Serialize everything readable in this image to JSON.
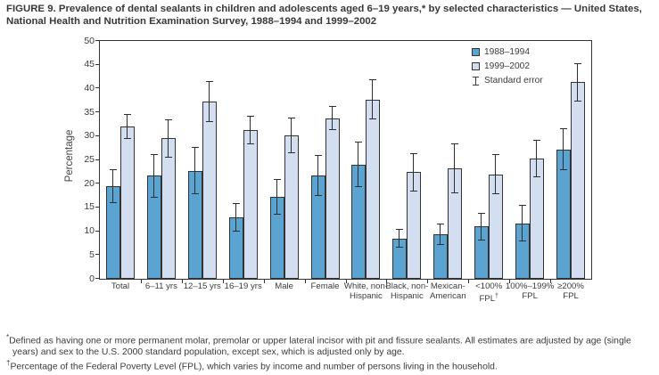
{
  "title": "FIGURE 9. Prevalence of dental sealants in children and adolescents aged 6–19 years,* by selected characteristics — United States, National Health and Nutrition Examination Survey, 1988–1994 and 1999–2002",
  "colors": {
    "series1": "#5BA3D1",
    "series2": "#D3DFF0",
    "bar_border": "#333333",
    "axis": "#333333",
    "text": "#3B3B3B"
  },
  "legend": {
    "series1_label": "1988–1994",
    "series2_label": "1999–2002",
    "se_label": "Standard error"
  },
  "footnotes": [
    {
      "marker": "*",
      "text": "Defined as having one or more permanent molar, premolar or upper lateral incisor with pit and fissure sealants.  All estimates are adjusted by age (single years) and sex to the U.S. 2000 standard population, except sex, which is adjusted only by age."
    },
    {
      "marker": "†",
      "text": "Percentage of the Federal Poverty Level (FPL), which varies by income and number of persons living in the household."
    }
  ],
  "chart_data": {
    "type": "bar",
    "title": "",
    "xlabel": "",
    "ylabel": "Percentage",
    "ylim": [
      0,
      50
    ],
    "ytick_step": 5,
    "grid": false,
    "legend_position": "top-right-inside",
    "error_bars": "standard error",
    "categories": [
      "Total",
      "6–11 yrs",
      "12–15 yrs",
      "16–19 yrs",
      "Male",
      "Female",
      "White, non-\nHispanic",
      "Black, non-\nHispanic",
      "Mexican-\nAmerican",
      "<100%\nFPL†",
      "100%–199%\nFPL",
      "≥200%\nFPL"
    ],
    "series": [
      {
        "name": "1988–1994",
        "color": "#5BA3D1",
        "values": [
          19.5,
          21.7,
          22.7,
          13.0,
          17.2,
          21.8,
          24.0,
          8.5,
          9.4,
          11.0,
          11.7,
          27.2
        ],
        "standard_errors": [
          3.5,
          4.6,
          5.0,
          3.0,
          3.8,
          4.3,
          4.8,
          1.9,
          2.2,
          2.9,
          3.8,
          4.4
        ]
      },
      {
        "name": "1999–2002",
        "color": "#D3DFF0",
        "values": [
          32.0,
          29.5,
          37.3,
          31.3,
          30.2,
          33.8,
          37.7,
          22.4,
          23.2,
          22.0,
          25.3,
          41.3
        ],
        "standard_errors": [
          2.6,
          4.0,
          4.3,
          3.0,
          3.7,
          2.5,
          4.2,
          4.0,
          5.3,
          4.3,
          4.0,
          4.0
        ]
      }
    ]
  }
}
